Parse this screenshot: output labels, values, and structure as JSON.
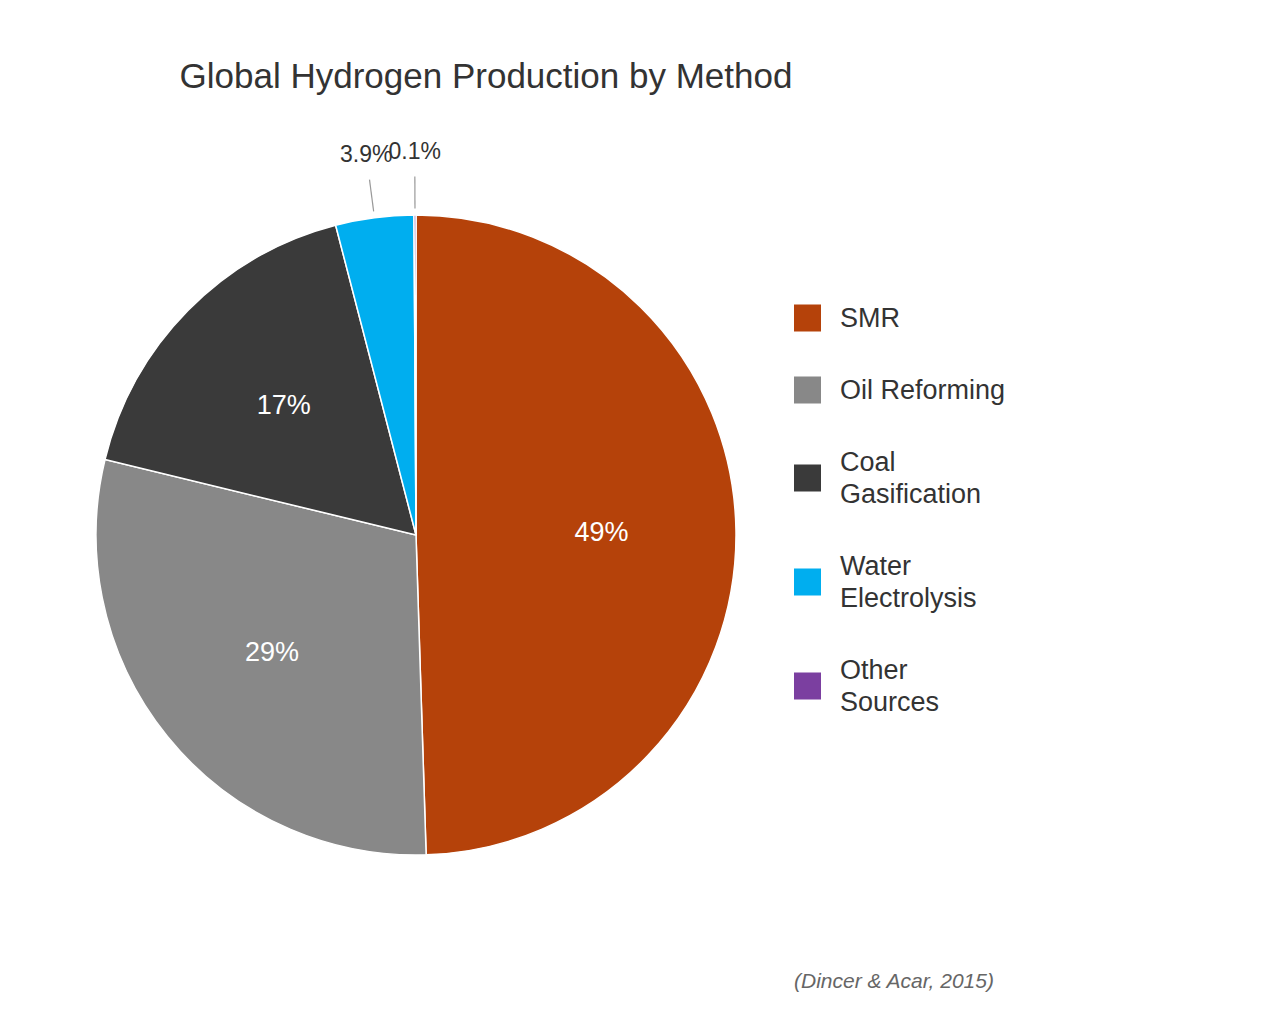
{
  "chart_data": {
    "type": "pie",
    "title": "Global Hydrogen Production by Method",
    "categories": [
      "SMR",
      "Oil Reforming",
      "Coal\nGasification",
      "Water\nElectrolysis",
      "Other\nSources"
    ],
    "values": [
      49,
      29,
      17,
      3.9,
      0.1
    ],
    "value_labels": [
      "49%",
      "29%",
      "17%",
      "3.9%",
      "0.1%"
    ],
    "colors": [
      "#b5420a",
      "#888888",
      "#3a3a3a",
      "#00aeef",
      "#7b3fa0"
    ],
    "data_labels": true,
    "legend": "right",
    "annotations": [
      "(Dincer & Acar, 2015)"
    ]
  }
}
